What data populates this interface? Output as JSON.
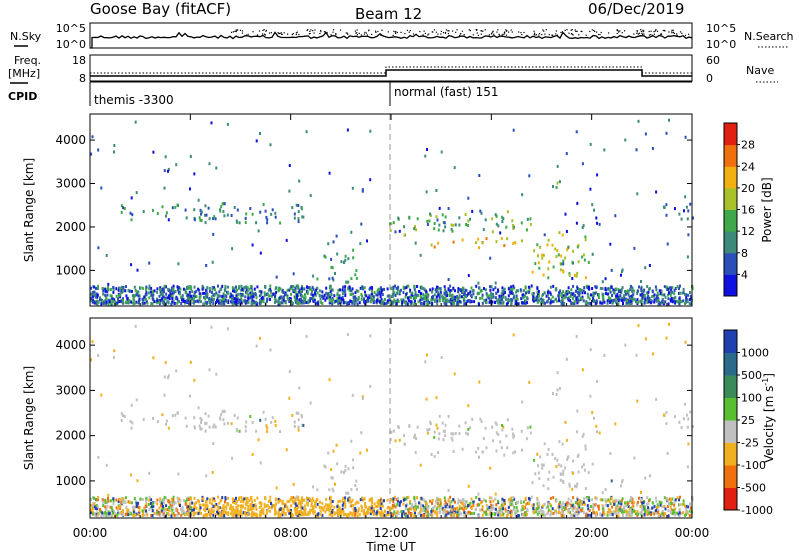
{
  "header": {
    "station": "Goose Bay (fitACF)",
    "beam": "Beam 12",
    "date": "06/Dec/2019"
  },
  "nsky_panel": {
    "left_label": "N.Sky",
    "left_ticks": [
      "10^5",
      "10^0"
    ],
    "right_ticks": [
      "10^5",
      "10^0"
    ],
    "right_label": "N.Search"
  },
  "freq_panel": {
    "left_label_1": "Freq.",
    "left_label_2": "[MHz]",
    "left_ticks": [
      "18",
      "8"
    ],
    "right_ticks": [
      "60",
      "0"
    ],
    "right_label": "Nave"
  },
  "cpid": {
    "label": "CPID",
    "mode_1": "themis -3300",
    "mode_2": "normal (fast) 151"
  },
  "chart_data": [
    {
      "type": "heatmap",
      "quantity": "Power",
      "ylabel": "Slant Range [km]",
      "yticks": [
        "1000",
        "2000",
        "3000",
        "4000"
      ],
      "ylim": [
        180,
        4600
      ],
      "xlim": [
        0,
        24
      ],
      "colorbar_label": "Power [dB]",
      "colorbar_ticks": [
        "4",
        "8",
        "12",
        "16",
        "20",
        "24",
        "28"
      ],
      "colorbar_colors": [
        "#1010e0",
        "#2a4fb8",
        "#3d8a7a",
        "#3fa84a",
        "#a8c02a",
        "#f0b010",
        "#f07010",
        "#e02010"
      ],
      "echo_regions": [
        {
          "t0": 1.0,
          "t1": 8.7,
          "r0": 2050,
          "r1": 2600,
          "level": 2
        },
        {
          "t0": 2.4,
          "t1": 3.4,
          "r0": 3250,
          "r1": 3450,
          "level": 1
        },
        {
          "t0": 9.0,
          "t1": 10.6,
          "r0": 650,
          "r1": 1500,
          "level": 2
        },
        {
          "t0": 11.9,
          "t1": 17.6,
          "r0": 1800,
          "r1": 2400,
          "level": 3
        },
        {
          "t0": 13.5,
          "t1": 17.5,
          "r0": 1500,
          "r1": 1750,
          "level": 5
        },
        {
          "t0": 17.6,
          "t1": 20.0,
          "r0": 700,
          "r1": 1900,
          "level": 4
        },
        {
          "t0": 18.4,
          "t1": 18.7,
          "r0": 2500,
          "r1": 3300,
          "level": 3
        },
        {
          "t0": 20.4,
          "t1": 21.2,
          "r0": 700,
          "r1": 1050,
          "level": 1
        },
        {
          "t0": 22.8,
          "t1": 24.0,
          "r0": 2100,
          "r1": 2600,
          "level": 1
        }
      ]
    },
    {
      "type": "heatmap",
      "quantity": "Velocity",
      "ylabel": "Slant Range [km]",
      "yticks": [
        "1000",
        "2000",
        "3000",
        "4000"
      ],
      "ylim": [
        180,
        4600
      ],
      "xlim": [
        0,
        24
      ],
      "xticks": [
        "00:00",
        "04:00",
        "08:00",
        "12:00",
        "16:00",
        "20:00",
        "00:00"
      ],
      "xlabel": "Time UT",
      "colorbar_label": "Velocity [m s",
      "colorbar_label_sup": "-1",
      "colorbar_label_tail": "]",
      "colorbar_ticks": [
        "1000",
        "500",
        "100",
        "25",
        "-25",
        "-100",
        "-500",
        "-1000"
      ],
      "colorbar_colors": [
        "#2040b0",
        "#2a6a8a",
        "#3a8a5a",
        "#58c030",
        "#c0c0c0",
        "#f0b020",
        "#f07010",
        "#e02010"
      ]
    }
  ]
}
